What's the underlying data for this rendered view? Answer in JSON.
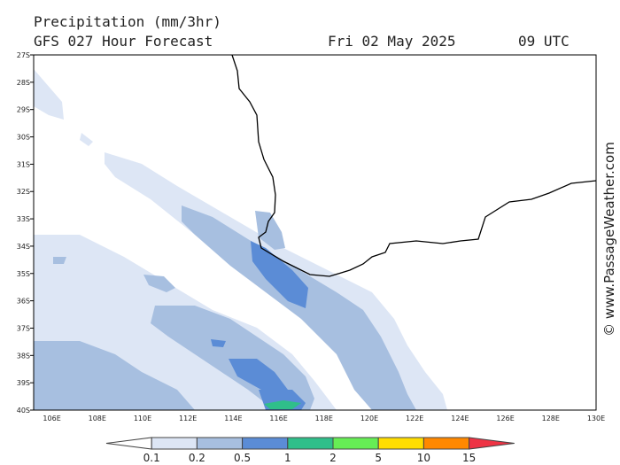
{
  "header": {
    "title": "Precipitation (mm/3hr)",
    "model": "GFS 027 Hour Forecast",
    "date": "Fri 02 May 2025",
    "time": "09 UTC"
  },
  "credit": "© www.PassageWeather.com",
  "map": {
    "lat_labels": [
      "27S",
      "28S",
      "29S",
      "30S",
      "31S",
      "32S",
      "33S",
      "34S",
      "35S",
      "36S",
      "37S",
      "38S",
      "39S",
      "40S"
    ],
    "lon_labels": [
      "106E",
      "108E",
      "110E",
      "112E",
      "114E",
      "116E",
      "118E",
      "120E",
      "122E",
      "124E",
      "126E",
      "128E",
      "130E"
    ]
  },
  "legend": {
    "levels": [
      0.1,
      0.2,
      0.5,
      1,
      2,
      5,
      10,
      15
    ]
  }
}
